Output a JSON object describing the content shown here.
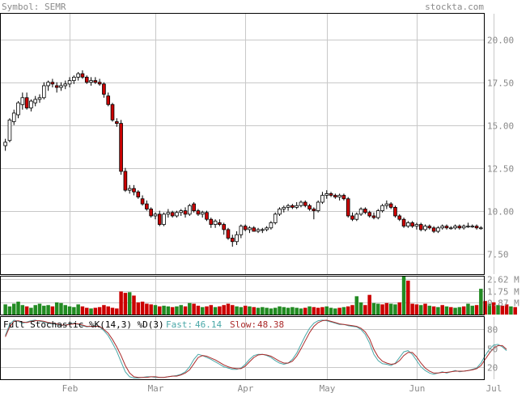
{
  "header": {
    "symbol_label": "Symbol: SEMR",
    "site": "stockta.com"
  },
  "colors": {
    "border": "#000000",
    "grid": "#c8c8c8",
    "text_gray": "#8a8a8a",
    "up": "#ffffff",
    "down": "#cc0000",
    "vol_up": "#228b22",
    "vol_down": "#cc0000",
    "fast": "#4aa8a8",
    "slow": "#aa2a2a"
  },
  "indicator": {
    "title": "Full Stochastic %K(14,3) %D(3)",
    "fast_label": "Fast:",
    "fast_value": "46.14",
    "slow_label": "Slow:",
    "slow_value": "48.38"
  },
  "chart_data": [
    {
      "type": "candlestick",
      "title": "",
      "x_labels": [
        "Feb",
        "Mar",
        "Apr",
        "May",
        "Jun",
        "Jul"
      ],
      "x_label_index": [
        15,
        35,
        56,
        75,
        96,
        114
      ],
      "y_ticks": [
        20.0,
        17.5,
        15.0,
        12.5,
        10.0,
        7.5
      ],
      "y_tick_labels": [
        "20.00",
        "17.50",
        "15.00",
        "12.50",
        "10.00",
        "7.50"
      ],
      "ylim": [
        6.3,
        21.5
      ],
      "candles": [
        {
          "o": 13.8,
          "h": 14.2,
          "l": 13.5,
          "c": 14.0
        },
        {
          "o": 14.1,
          "h": 15.4,
          "l": 14.0,
          "c": 15.3
        },
        {
          "o": 15.2,
          "h": 15.9,
          "l": 15.0,
          "c": 15.7
        },
        {
          "o": 15.6,
          "h": 16.4,
          "l": 15.4,
          "c": 16.3
        },
        {
          "o": 16.2,
          "h": 16.9,
          "l": 15.9,
          "c": 16.6
        },
        {
          "o": 16.6,
          "h": 16.9,
          "l": 15.9,
          "c": 16.0
        },
        {
          "o": 16.0,
          "h": 16.5,
          "l": 15.8,
          "c": 16.4
        },
        {
          "o": 16.3,
          "h": 16.7,
          "l": 16.1,
          "c": 16.5
        },
        {
          "o": 16.5,
          "h": 16.8,
          "l": 16.3,
          "c": 16.6
        },
        {
          "o": 16.6,
          "h": 17.5,
          "l": 16.5,
          "c": 17.3
        },
        {
          "o": 17.3,
          "h": 17.6,
          "l": 17.0,
          "c": 17.5
        },
        {
          "o": 17.5,
          "h": 17.7,
          "l": 17.2,
          "c": 17.4
        },
        {
          "o": 17.3,
          "h": 17.5,
          "l": 16.9,
          "c": 17.2
        },
        {
          "o": 17.2,
          "h": 17.5,
          "l": 17.0,
          "c": 17.3
        },
        {
          "o": 17.3,
          "h": 17.6,
          "l": 17.1,
          "c": 17.4
        },
        {
          "o": 17.4,
          "h": 17.8,
          "l": 17.2,
          "c": 17.6
        },
        {
          "o": 17.6,
          "h": 17.9,
          "l": 17.4,
          "c": 17.8
        },
        {
          "o": 17.8,
          "h": 18.1,
          "l": 17.6,
          "c": 18.0
        },
        {
          "o": 18.0,
          "h": 18.2,
          "l": 17.7,
          "c": 17.8
        },
        {
          "o": 17.8,
          "h": 17.9,
          "l": 17.4,
          "c": 17.5
        },
        {
          "o": 17.5,
          "h": 17.8,
          "l": 17.3,
          "c": 17.6
        },
        {
          "o": 17.6,
          "h": 17.8,
          "l": 17.4,
          "c": 17.5
        },
        {
          "o": 17.5,
          "h": 17.7,
          "l": 17.3,
          "c": 17.4
        },
        {
          "o": 17.4,
          "h": 17.5,
          "l": 16.6,
          "c": 16.8
        },
        {
          "o": 16.7,
          "h": 16.9,
          "l": 16.1,
          "c": 16.2
        },
        {
          "o": 16.2,
          "h": 16.3,
          "l": 15.2,
          "c": 15.3
        },
        {
          "o": 15.2,
          "h": 15.4,
          "l": 14.9,
          "c": 15.1
        },
        {
          "o": 15.1,
          "h": 15.3,
          "l": 12.1,
          "c": 12.3
        },
        {
          "o": 12.3,
          "h": 12.5,
          "l": 11.1,
          "c": 11.2
        },
        {
          "o": 11.2,
          "h": 11.5,
          "l": 11.0,
          "c": 11.3
        },
        {
          "o": 11.3,
          "h": 11.5,
          "l": 10.9,
          "c": 11.1
        },
        {
          "o": 11.1,
          "h": 11.2,
          "l": 10.7,
          "c": 10.8
        },
        {
          "o": 10.7,
          "h": 10.9,
          "l": 10.3,
          "c": 10.4
        },
        {
          "o": 10.4,
          "h": 10.6,
          "l": 10.0,
          "c": 10.1
        },
        {
          "o": 10.1,
          "h": 10.2,
          "l": 9.6,
          "c": 9.7
        },
        {
          "o": 9.7,
          "h": 9.9,
          "l": 9.5,
          "c": 9.8
        },
        {
          "o": 9.8,
          "h": 10.0,
          "l": 9.1,
          "c": 9.2
        },
        {
          "o": 9.2,
          "h": 9.9,
          "l": 9.1,
          "c": 9.8
        },
        {
          "o": 9.8,
          "h": 10.1,
          "l": 9.6,
          "c": 9.9
        },
        {
          "o": 9.9,
          "h": 10.0,
          "l": 9.6,
          "c": 9.7
        },
        {
          "o": 9.7,
          "h": 10.0,
          "l": 9.6,
          "c": 9.9
        },
        {
          "o": 9.9,
          "h": 10.1,
          "l": 9.7,
          "c": 10.0
        },
        {
          "o": 10.0,
          "h": 10.2,
          "l": 9.6,
          "c": 9.8
        },
        {
          "o": 9.8,
          "h": 10.4,
          "l": 9.7,
          "c": 10.3
        },
        {
          "o": 10.4,
          "h": 10.5,
          "l": 9.9,
          "c": 10.0
        },
        {
          "o": 10.0,
          "h": 10.1,
          "l": 9.7,
          "c": 9.8
        },
        {
          "o": 9.8,
          "h": 10.0,
          "l": 9.6,
          "c": 9.9
        },
        {
          "o": 9.9,
          "h": 10.0,
          "l": 9.4,
          "c": 9.5
        },
        {
          "o": 9.5,
          "h": 9.6,
          "l": 9.0,
          "c": 9.2
        },
        {
          "o": 9.2,
          "h": 9.5,
          "l": 9.0,
          "c": 9.4
        },
        {
          "o": 9.3,
          "h": 9.5,
          "l": 9.1,
          "c": 9.2
        },
        {
          "o": 9.2,
          "h": 9.3,
          "l": 8.6,
          "c": 8.9
        },
        {
          "o": 8.9,
          "h": 9.0,
          "l": 8.3,
          "c": 8.4
        },
        {
          "o": 8.4,
          "h": 8.6,
          "l": 7.9,
          "c": 8.2
        },
        {
          "o": 8.2,
          "h": 8.8,
          "l": 8.0,
          "c": 8.6
        },
        {
          "o": 8.6,
          "h": 9.2,
          "l": 8.4,
          "c": 9.1
        },
        {
          "o": 9.1,
          "h": 9.2,
          "l": 8.8,
          "c": 8.9
        },
        {
          "o": 8.9,
          "h": 9.1,
          "l": 8.7,
          "c": 9.0
        },
        {
          "o": 9.0,
          "h": 9.1,
          "l": 8.8,
          "c": 8.8
        },
        {
          "o": 8.8,
          "h": 9.0,
          "l": 8.7,
          "c": 8.9
        },
        {
          "o": 8.9,
          "h": 9.0,
          "l": 8.7,
          "c": 8.9
        },
        {
          "o": 8.9,
          "h": 9.1,
          "l": 8.8,
          "c": 9.0
        },
        {
          "o": 9.0,
          "h": 9.4,
          "l": 8.9,
          "c": 9.3
        },
        {
          "o": 9.3,
          "h": 9.9,
          "l": 9.2,
          "c": 9.8
        },
        {
          "o": 9.8,
          "h": 10.2,
          "l": 9.7,
          "c": 10.1
        },
        {
          "o": 10.1,
          "h": 10.3,
          "l": 9.9,
          "c": 10.2
        },
        {
          "o": 10.2,
          "h": 10.4,
          "l": 10.0,
          "c": 10.3
        },
        {
          "o": 10.3,
          "h": 10.4,
          "l": 10.1,
          "c": 10.2
        },
        {
          "o": 10.2,
          "h": 10.5,
          "l": 10.1,
          "c": 10.3
        },
        {
          "o": 10.3,
          "h": 10.6,
          "l": 10.2,
          "c": 10.5
        },
        {
          "o": 10.5,
          "h": 10.6,
          "l": 10.2,
          "c": 10.3
        },
        {
          "o": 10.3,
          "h": 10.4,
          "l": 10.0,
          "c": 10.1
        },
        {
          "o": 10.1,
          "h": 10.2,
          "l": 9.5,
          "c": 10.0
        },
        {
          "o": 10.0,
          "h": 10.6,
          "l": 9.9,
          "c": 10.5
        },
        {
          "o": 10.5,
          "h": 11.1,
          "l": 10.4,
          "c": 10.9
        },
        {
          "o": 10.9,
          "h": 11.2,
          "l": 10.7,
          "c": 11.0
        },
        {
          "o": 11.0,
          "h": 11.1,
          "l": 10.8,
          "c": 10.9
        },
        {
          "o": 10.9,
          "h": 11.0,
          "l": 10.7,
          "c": 10.8
        },
        {
          "o": 10.8,
          "h": 11.0,
          "l": 10.6,
          "c": 10.9
        },
        {
          "o": 10.9,
          "h": 11.0,
          "l": 10.6,
          "c": 10.7
        },
        {
          "o": 10.7,
          "h": 10.8,
          "l": 9.6,
          "c": 9.7
        },
        {
          "o": 9.7,
          "h": 9.9,
          "l": 9.4,
          "c": 9.5
        },
        {
          "o": 9.5,
          "h": 9.9,
          "l": 9.4,
          "c": 9.8
        },
        {
          "o": 9.8,
          "h": 10.2,
          "l": 9.7,
          "c": 10.1
        },
        {
          "o": 10.1,
          "h": 10.2,
          "l": 9.8,
          "c": 9.9
        },
        {
          "o": 9.9,
          "h": 10.0,
          "l": 9.6,
          "c": 9.7
        },
        {
          "o": 9.7,
          "h": 9.9,
          "l": 9.5,
          "c": 9.6
        },
        {
          "o": 9.6,
          "h": 10.1,
          "l": 9.5,
          "c": 10.0
        },
        {
          "o": 10.0,
          "h": 10.4,
          "l": 9.9,
          "c": 10.3
        },
        {
          "o": 10.3,
          "h": 10.6,
          "l": 10.1,
          "c": 10.4
        },
        {
          "o": 10.4,
          "h": 10.5,
          "l": 10.1,
          "c": 10.2
        },
        {
          "o": 10.2,
          "h": 10.3,
          "l": 9.6,
          "c": 9.7
        },
        {
          "o": 9.7,
          "h": 9.8,
          "l": 9.4,
          "c": 9.5
        },
        {
          "o": 9.5,
          "h": 9.6,
          "l": 9.0,
          "c": 9.1
        },
        {
          "o": 9.1,
          "h": 9.4,
          "l": 9.0,
          "c": 9.3
        },
        {
          "o": 9.3,
          "h": 9.4,
          "l": 9.0,
          "c": 9.1
        },
        {
          "o": 9.1,
          "h": 9.3,
          "l": 8.9,
          "c": 9.2
        },
        {
          "o": 9.2,
          "h": 9.3,
          "l": 8.8,
          "c": 8.9
        },
        {
          "o": 8.9,
          "h": 9.2,
          "l": 8.8,
          "c": 9.1
        },
        {
          "o": 9.1,
          "h": 9.2,
          "l": 8.9,
          "c": 9.0
        },
        {
          "o": 9.0,
          "h": 9.1,
          "l": 8.7,
          "c": 8.8
        },
        {
          "o": 8.8,
          "h": 9.1,
          "l": 8.7,
          "c": 9.0
        },
        {
          "o": 9.0,
          "h": 9.2,
          "l": 8.9,
          "c": 9.1
        },
        {
          "o": 9.1,
          "h": 9.2,
          "l": 8.9,
          "c": 9.0
        },
        {
          "o": 9.0,
          "h": 9.1,
          "l": 8.9,
          "c": 9.0
        },
        {
          "o": 9.0,
          "h": 9.2,
          "l": 8.9,
          "c": 9.1
        },
        {
          "o": 9.1,
          "h": 9.2,
          "l": 8.9,
          "c": 9.0
        },
        {
          "o": 9.0,
          "h": 9.2,
          "l": 8.9,
          "c": 9.1
        },
        {
          "o": 9.1,
          "h": 9.3,
          "l": 9.0,
          "c": 9.1
        },
        {
          "o": 9.1,
          "h": 9.2,
          "l": 9.0,
          "c": 9.1
        },
        {
          "o": 9.1,
          "h": 9.2,
          "l": 8.9,
          "c": 9.0
        },
        {
          "o": 9.0,
          "h": 9.1,
          "l": 8.9,
          "c": 9.0
        }
      ]
    },
    {
      "type": "bar",
      "title": "",
      "y_ticks": [
        2.62,
        1.75,
        0.87
      ],
      "y_tick_labels": [
        "2.62 M",
        "1.75 M",
        "0.87 M"
      ],
      "ylim": [
        0,
        2.8
      ],
      "unit": "M",
      "values": [
        0.75,
        0.6,
        0.8,
        0.95,
        0.7,
        0.6,
        0.5,
        0.7,
        0.8,
        0.65,
        0.7,
        0.6,
        0.9,
        0.85,
        0.7,
        0.6,
        0.55,
        0.75,
        0.6,
        0.5,
        0.45,
        0.5,
        0.55,
        0.7,
        0.6,
        0.5,
        0.45,
        1.7,
        1.6,
        1.65,
        1.4,
        0.9,
        0.95,
        0.8,
        0.75,
        0.7,
        0.6,
        0.65,
        0.6,
        0.55,
        0.6,
        0.7,
        0.6,
        0.85,
        0.8,
        0.65,
        0.55,
        0.6,
        0.7,
        0.55,
        0.6,
        0.7,
        0.8,
        0.7,
        0.6,
        0.55,
        0.65,
        0.6,
        0.55,
        0.5,
        0.55,
        0.5,
        0.45,
        0.5,
        0.6,
        0.55,
        0.5,
        0.55,
        0.5,
        0.45,
        0.5,
        0.6,
        0.55,
        0.5,
        0.55,
        0.6,
        0.5,
        0.45,
        0.5,
        0.55,
        0.6,
        0.7,
        1.35,
        0.9,
        0.7,
        1.45,
        0.85,
        0.8,
        0.75,
        0.85,
        0.8,
        0.75,
        0.9,
        2.8,
        2.5,
        0.8,
        0.75,
        0.7,
        0.8,
        0.65,
        0.6,
        0.55,
        0.7,
        0.6,
        0.55,
        0.5,
        0.55,
        0.6,
        0.8,
        0.65,
        0.7,
        1.9,
        1.0,
        0.8,
        0.9,
        0.7,
        0.65,
        0.75,
        0.6,
        0.55
      ],
      "up": [
        1,
        1,
        1,
        1,
        1,
        0,
        1,
        1,
        1,
        1,
        1,
        0,
        1,
        1,
        1,
        1,
        1,
        1,
        0,
        0,
        1,
        0,
        0,
        0,
        0,
        0,
        0,
        0,
        0,
        1,
        0,
        0,
        0,
        0,
        0,
        1,
        0,
        1,
        1,
        0,
        1,
        1,
        0,
        1,
        0,
        0,
        1,
        0,
        0,
        1,
        0,
        0,
        0,
        0,
        1,
        1,
        0,
        1,
        0,
        1,
        1,
        1,
        1,
        1,
        1,
        1,
        1,
        1,
        1,
        1,
        0,
        1,
        0,
        0,
        0,
        1,
        1,
        1,
        0,
        1,
        0,
        0,
        1,
        1,
        0,
        0,
        1,
        1,
        0,
        0,
        1,
        1,
        0,
        1,
        0,
        0,
        0,
        1,
        0,
        1,
        0,
        1,
        0,
        1,
        0,
        1,
        1,
        0,
        1,
        1,
        0,
        1,
        0,
        1,
        0,
        1,
        0,
        0,
        1,
        0
      ]
    },
    {
      "type": "line",
      "title": "",
      "y_ticks": [
        80,
        50,
        20
      ],
      "y_tick_labels": [
        "80",
        "50",
        "20"
      ],
      "ylim": [
        0,
        100
      ],
      "series": [
        {
          "name": "Fast",
          "values": [
            70,
            88,
            95,
            93,
            90,
            92,
            94,
            95,
            93,
            92,
            90,
            89,
            88,
            86,
            87,
            89,
            90,
            88,
            86,
            84,
            85,
            86,
            84,
            78,
            70,
            58,
            45,
            28,
            12,
            4,
            2,
            2,
            3,
            4,
            4,
            3,
            3,
            3,
            4,
            5,
            6,
            8,
            12,
            20,
            32,
            40,
            38,
            35,
            32,
            28,
            24,
            20,
            18,
            16,
            16,
            18,
            24,
            32,
            38,
            40,
            40,
            38,
            35,
            30,
            26,
            24,
            26,
            32,
            42,
            56,
            70,
            82,
            90,
            94,
            95,
            94,
            92,
            90,
            88,
            88,
            86,
            85,
            84,
            80,
            72,
            58,
            40,
            30,
            25,
            24,
            22,
            26,
            35,
            44,
            46,
            40,
            30,
            20,
            14,
            10,
            8,
            10,
            12,
            10,
            12,
            14,
            12,
            13,
            14,
            16,
            18,
            26,
            38,
            48,
            55,
            56,
            52,
            46
          ]
        },
        {
          "name": "Slow",
          "values": [
            68,
            84,
            93,
            94,
            92,
            91,
            93,
            94,
            94,
            93,
            91,
            90,
            89,
            87,
            87,
            88,
            89,
            89,
            87,
            85,
            85,
            85,
            85,
            80,
            74,
            64,
            52,
            38,
            22,
            10,
            4,
            3,
            3,
            3,
            4,
            4,
            3,
            3,
            4,
            5,
            5,
            7,
            10,
            15,
            25,
            35,
            38,
            37,
            34,
            31,
            27,
            23,
            20,
            18,
            17,
            17,
            21,
            28,
            35,
            39,
            40,
            39,
            37,
            33,
            29,
            26,
            26,
            29,
            37,
            49,
            62,
            75,
            85,
            91,
            94,
            95,
            93,
            91,
            89,
            88,
            87,
            86,
            85,
            82,
            76,
            65,
            48,
            36,
            29,
            26,
            24,
            25,
            30,
            38,
            43,
            43,
            36,
            26,
            18,
            13,
            10,
            10,
            11,
            11,
            12,
            13,
            13,
            13,
            14,
            15,
            17,
            22,
            32,
            42,
            50,
            54,
            54,
            48
          ]
        }
      ]
    }
  ]
}
